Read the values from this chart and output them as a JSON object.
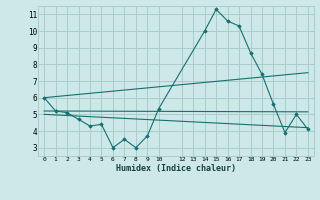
{
  "xlabel": "Humidex (Indice chaleur)",
  "background_color": "#cce8e8",
  "grid_color": "#aacccc",
  "line_color": "#1a6e6e",
  "xlim": [
    -0.5,
    23.5
  ],
  "ylim": [
    2.5,
    11.5
  ],
  "xticks": [
    0,
    1,
    2,
    3,
    4,
    5,
    6,
    7,
    8,
    9,
    10,
    12,
    13,
    14,
    15,
    16,
    17,
    18,
    19,
    20,
    21,
    22,
    23
  ],
  "yticks": [
    3,
    4,
    5,
    6,
    7,
    8,
    9,
    10,
    11
  ],
  "series1_x": [
    0,
    1,
    2,
    3,
    4,
    5,
    6,
    7,
    8,
    9,
    10,
    14,
    15,
    16,
    17,
    18,
    19,
    20,
    21,
    22,
    23
  ],
  "series1_y": [
    6.0,
    5.2,
    5.1,
    4.7,
    4.3,
    4.4,
    3.0,
    3.5,
    3.0,
    3.7,
    5.35,
    10.0,
    11.3,
    10.6,
    10.3,
    8.7,
    7.4,
    5.6,
    3.9,
    5.0,
    4.1
  ],
  "series2_x": [
    0,
    23
  ],
  "series2_y": [
    6.0,
    7.5
  ],
  "series3_x": [
    0,
    23
  ],
  "series3_y": [
    5.2,
    5.15
  ],
  "series4_x": [
    0,
    23
  ],
  "series4_y": [
    5.0,
    4.2
  ]
}
